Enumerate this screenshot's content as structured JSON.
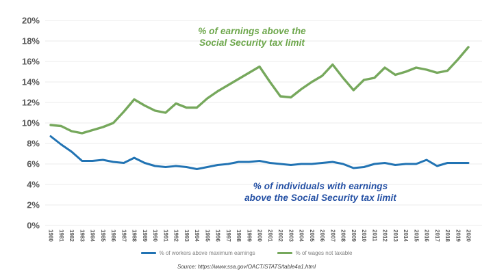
{
  "chart_data": {
    "type": "line",
    "x": [
      1980,
      1981,
      1982,
      1983,
      1984,
      1985,
      1986,
      1987,
      1988,
      1989,
      1990,
      1991,
      1992,
      1993,
      1994,
      1995,
      1996,
      1997,
      1998,
      1999,
      2000,
      2001,
      2002,
      2003,
      2004,
      2005,
      2006,
      2007,
      2008,
      2009,
      2010,
      2011,
      2012,
      2013,
      2014,
      2015,
      2016,
      2017,
      2018,
      2019,
      2020
    ],
    "x_tick_labels": [
      "1980",
      "1981",
      "1982",
      "1983",
      "1984",
      "1985",
      "1986",
      "1987",
      "1988",
      "1989",
      "1990",
      "1991",
      "1992",
      "1993",
      "1994",
      "1995",
      "1996",
      "1997",
      "1998",
      "1999",
      "2000",
      "2001",
      "2002",
      "2003",
      "2004",
      "2005",
      "2006",
      "2007",
      "2008",
      "2009",
      "2010",
      "2011",
      "2012",
      "2013",
      "2014",
      "2015",
      "2016",
      "2017",
      "2018",
      "2019",
      "2020"
    ],
    "y_tick_labels": [
      "20%",
      "18%",
      "16%",
      "14%",
      "12%",
      "10%",
      "8%",
      "6%",
      "4%",
      "2%",
      "0%"
    ],
    "ylim": [
      0,
      20
    ],
    "ytick_step": 2,
    "grid": "horizontal",
    "legend_position": "bottom",
    "series": [
      {
        "name": "% of workers above maximum earnings",
        "color": "#2173b3",
        "values": [
          8.7,
          7.9,
          7.2,
          6.3,
          6.3,
          6.4,
          6.2,
          6.1,
          6.6,
          6.1,
          5.8,
          5.7,
          5.8,
          5.7,
          5.5,
          5.7,
          5.9,
          6.0,
          6.2,
          6.2,
          6.3,
          6.1,
          6.0,
          5.9,
          6.0,
          6.0,
          6.1,
          6.2,
          6.0,
          5.6,
          5.7,
          6.0,
          6.1,
          5.9,
          6.0,
          6.0,
          6.4,
          5.8,
          6.1,
          6.1,
          6.1
        ]
      },
      {
        "name": "% of wages not taxable",
        "color": "#76a85c",
        "values": [
          9.8,
          9.7,
          9.2,
          9.0,
          9.3,
          9.6,
          10.0,
          11.1,
          12.3,
          11.7,
          11.2,
          11.0,
          11.9,
          11.5,
          11.5,
          12.4,
          13.1,
          13.7,
          14.3,
          14.9,
          15.5,
          14.0,
          12.6,
          12.5,
          13.3,
          14.0,
          14.6,
          15.7,
          14.4,
          13.2,
          14.2,
          14.4,
          15.4,
          14.7,
          15.0,
          15.4,
          15.2,
          14.9,
          15.1,
          16.2,
          17.4
        ]
      }
    ],
    "annotations": [
      {
        "id": "green",
        "color": "#6ca64a",
        "text_lines": [
          "% of earnings above the",
          "Social Security tax limit"
        ]
      },
      {
        "id": "blue",
        "color": "#2450a4",
        "text_lines": [
          "% of individuals with earnings",
          "above the Social Security tax limit"
        ]
      }
    ]
  },
  "source": "Source: https://www.ssa.gov/OACT/STATS/table4a1.html"
}
